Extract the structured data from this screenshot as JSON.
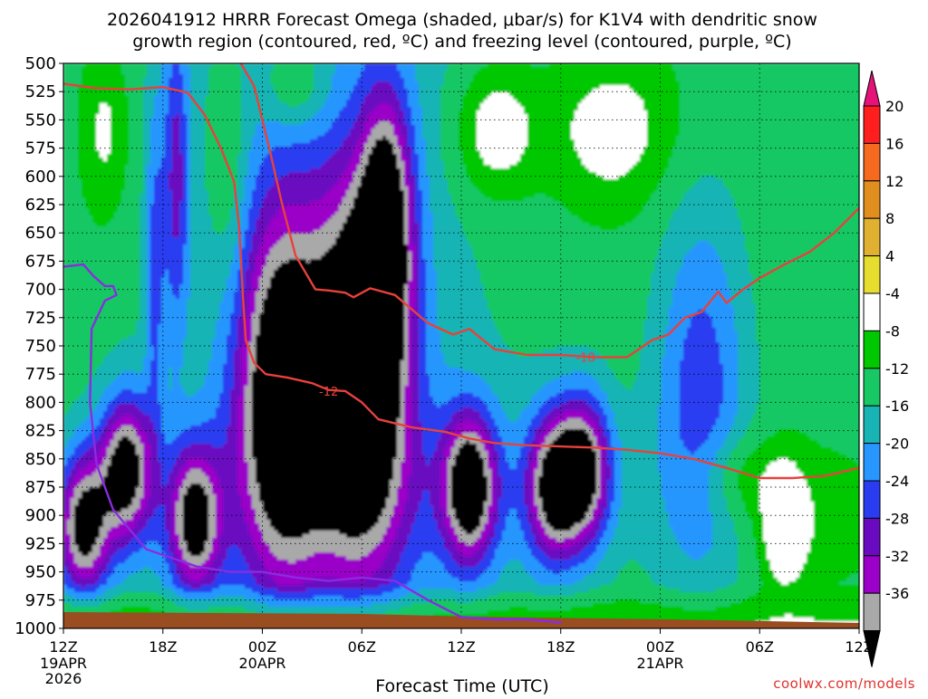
{
  "chart_data": {
    "type": "heatmap",
    "title_line1": "2026041912 HRRR Forecast Omega (shaded, μbar/s) for K1V4 with dendritic snow",
    "title_line2": "growth region (contoured, red, ºC) and freezing level (contoured, purple, ºC)",
    "xlabel": "Forecast Time (UTC)",
    "credit": "coolwx.com/models",
    "x_ticks": [
      {
        "hour": 0,
        "label": "12Z",
        "date": "19APR",
        "year": "2026"
      },
      {
        "hour": 6,
        "label": "18Z"
      },
      {
        "hour": 12,
        "label": "00Z",
        "date": "20APR"
      },
      {
        "hour": 18,
        "label": "06Z"
      },
      {
        "hour": 24,
        "label": "12Z"
      },
      {
        "hour": 30,
        "label": "18Z"
      },
      {
        "hour": 36,
        "label": "00Z",
        "date": "21APR"
      },
      {
        "hour": 42,
        "label": "06Z"
      },
      {
        "hour": 48,
        "label": "12Z"
      }
    ],
    "xlim_hours": [
      0,
      48
    ],
    "y_levels_mb": [
      500,
      525,
      550,
      575,
      600,
      625,
      650,
      675,
      700,
      725,
      750,
      775,
      800,
      825,
      850,
      875,
      900,
      925,
      950,
      975,
      1000
    ],
    "ylim_mb": [
      500,
      1000
    ],
    "grid": true,
    "colorbar": {
      "labels": [
        "20",
        "16",
        "12",
        "8",
        "4",
        "-4",
        "-8",
        "-12",
        "-16",
        "-20",
        "-24",
        "-28",
        "-32",
        "-36"
      ],
      "levels": [
        20,
        16,
        12,
        8,
        4,
        -4,
        -8,
        -12,
        -16,
        -20,
        -24,
        -28,
        -32,
        -36
      ],
      "colors": [
        "#ff1e1e",
        "#f56a1e",
        "#e08f1e",
        "#e0b030",
        "#e6dd2e",
        "#ffffff",
        "#00c800",
        "#18c864",
        "#18b4b4",
        "#2896ff",
        "#2a3cf0",
        "#6a0ac0",
        "#9a00c8",
        "#a9a9a9",
        "#000000"
      ],
      "top_color": "#e6127a"
    },
    "omega_cores": [
      {
        "hour": 1.2,
        "mb": 910,
        "min": -38
      },
      {
        "hour": 3.8,
        "mb": 860,
        "min": -38
      },
      {
        "hour": 7.9,
        "mb": 905,
        "min": -36
      },
      {
        "hour": 13.2,
        "mb": 790,
        "min": -40
      },
      {
        "hour": 18.0,
        "mb": 770,
        "min": -44
      },
      {
        "hour": 24.5,
        "mb": 875,
        "min": -38
      },
      {
        "hour": 29.5,
        "mb": 875,
        "min": -34
      },
      {
        "hour": 31.4,
        "mb": 860,
        "min": -36
      },
      {
        "hour": 38.5,
        "mb": 790,
        "min": -22
      }
    ],
    "series": [
      {
        "name": "-12",
        "color": "#e8413c",
        "label_at": {
          "hour": 16.0,
          "mb": 790
        },
        "x_hours": [
          0,
          2,
          4,
          6,
          7.5,
          8.5,
          9.5,
          10.3,
          10.6,
          10.8,
          11.0,
          11.5,
          12.2,
          13.5,
          15,
          16,
          17,
          18,
          19,
          21,
          23,
          24.5,
          26,
          28,
          30,
          32,
          34,
          36,
          38,
          40,
          42,
          44,
          46,
          48
        ],
        "y_mb": [
          518,
          522,
          523,
          521,
          526,
          545,
          575,
          605,
          645,
          700,
          745,
          765,
          775,
          778,
          783,
          789,
          790,
          800,
          815,
          822,
          826,
          832,
          836,
          838,
          839,
          840,
          842,
          845,
          850,
          858,
          867,
          867,
          865,
          858
        ]
      },
      {
        "name": "-18",
        "color": "#e8413c",
        "label_at": {
          "hour": 31.5,
          "mb": 760
        },
        "x_hours": [
          10.5,
          11.5,
          12.5,
          13.2,
          14,
          15.2,
          16,
          17,
          17.5,
          18.5,
          20,
          22,
          23.5,
          24.5,
          26,
          28,
          30,
          32,
          34,
          35.5,
          36.5,
          37.5,
          38.5,
          39.5,
          40,
          41,
          42,
          43.5,
          45,
          46.5,
          48
        ],
        "y_mb": [
          495,
          520,
          580,
          625,
          670,
          700,
          701,
          703,
          707,
          699,
          705,
          730,
          740,
          735,
          753,
          758,
          758,
          760,
          760,
          745,
          740,
          725,
          720,
          702,
          712,
          700,
          690,
          678,
          667,
          650,
          628
        ]
      },
      {
        "name": "freezing level",
        "color": "#8a2be2",
        "x_hours": [
          0,
          1.2,
          1.8,
          2.5,
          3.0,
          3.2,
          2.5,
          1.7,
          1.6,
          2.0,
          3.0,
          5.0,
          8.0,
          10.0,
          12.0,
          14.0,
          16.0,
          18.0,
          20.0,
          22.0,
          24.0,
          26.0,
          28.0,
          30.0
        ],
        "y_mb": [
          680,
          678,
          688,
          697,
          697,
          705,
          710,
          735,
          800,
          855,
          895,
          930,
          945,
          950,
          950,
          955,
          958,
          955,
          958,
          975,
          990,
          992,
          992,
          995
        ]
      }
    ]
  }
}
